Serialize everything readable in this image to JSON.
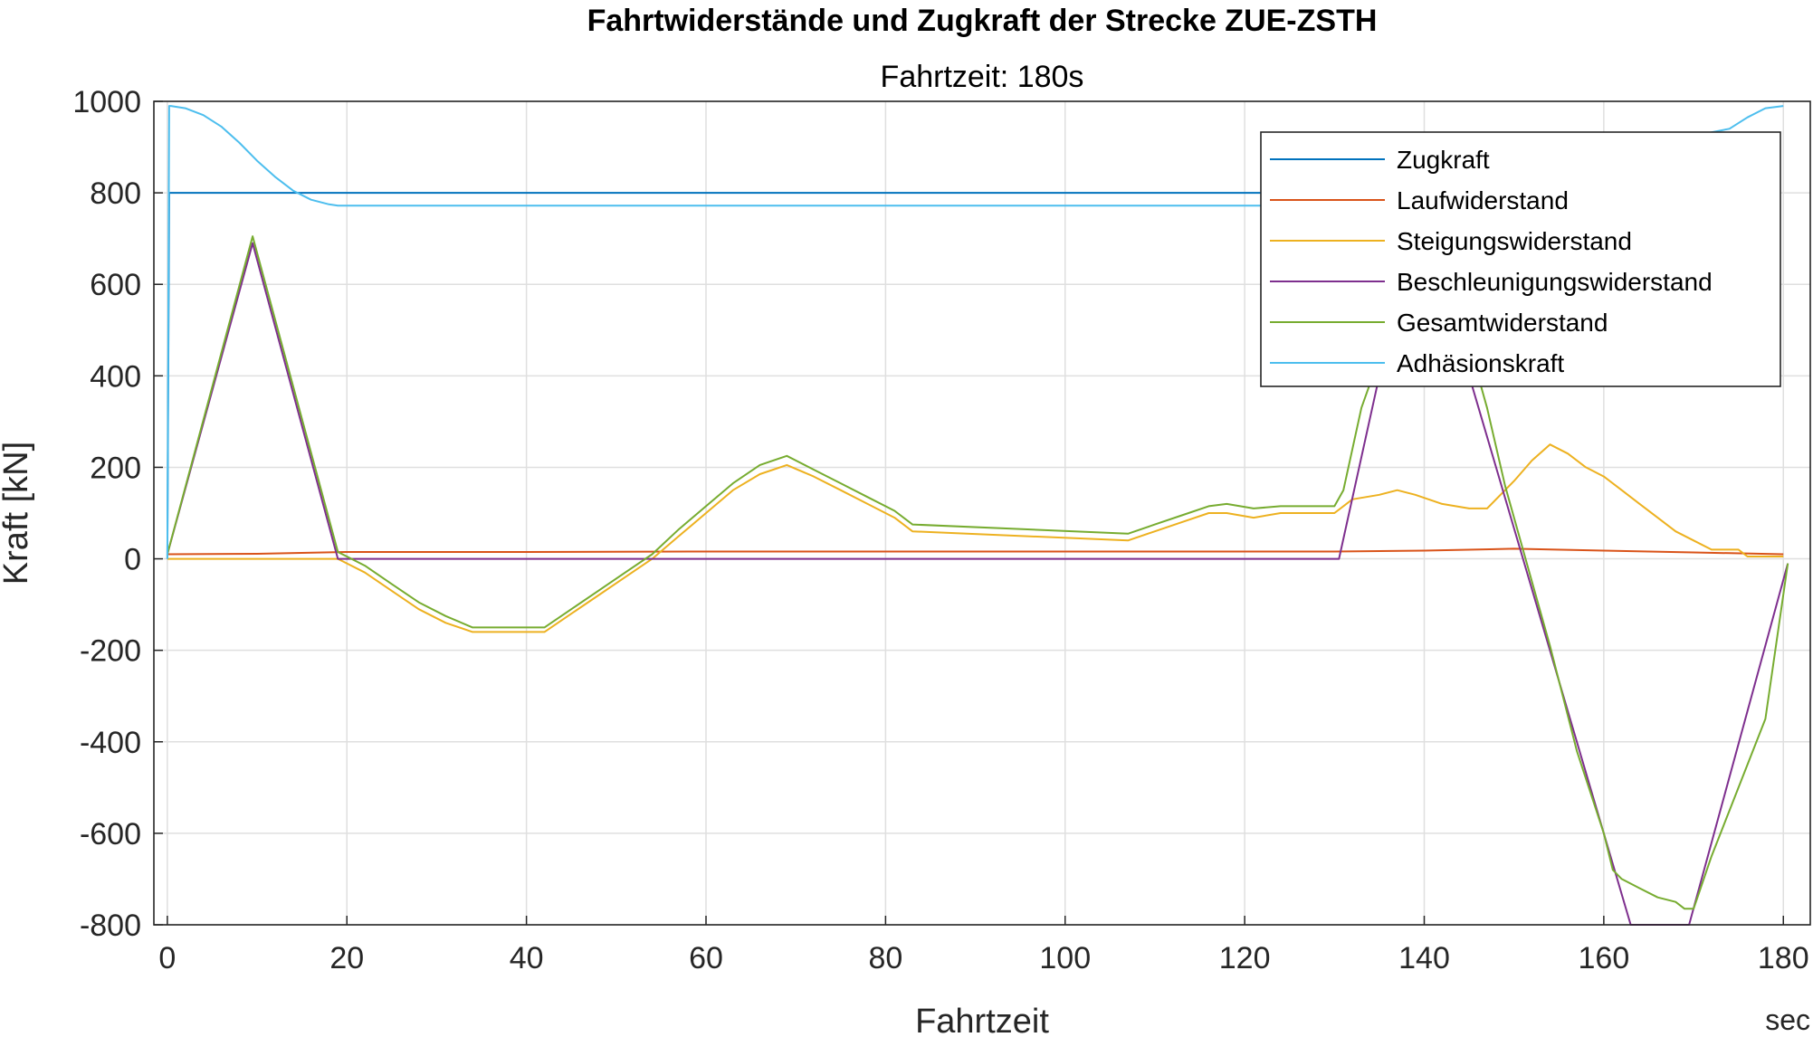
{
  "chart_data": {
    "type": "line",
    "title": "Fahrtwiderstände und Zugkraft der Strecke ZUE-ZSTH",
    "subtitle": "Fahrtzeit: 180s",
    "xlabel": "Fahrtzeit",
    "xunit": "sec",
    "ylabel": "Kraft [kN]",
    "xlim": [
      -1.5,
      183
    ],
    "ylim": [
      -800,
      1000
    ],
    "xticks": [
      "0",
      "20",
      "40",
      "60",
      "80",
      "100",
      "120",
      "140",
      "160",
      "180"
    ],
    "yticks": [
      "1000",
      "800",
      "600",
      "400",
      "200",
      "0",
      "-200",
      "-400",
      "-600",
      "-800"
    ],
    "grid": true,
    "legend_position": "top-right",
    "series": [
      {
        "name": "Zugkraft",
        "color": "#0072BD",
        "x": [
          0,
          0.2,
          0.4,
          130
        ],
        "y": [
          0,
          800,
          800,
          800
        ]
      },
      {
        "name": "Laufwiderstand",
        "color": "#D95319",
        "x": [
          0,
          10,
          20,
          40,
          60,
          80,
          100,
          120,
          130,
          140,
          150,
          160,
          170,
          180
        ],
        "y": [
          10,
          11,
          15,
          15,
          16,
          16,
          16,
          16,
          16,
          18,
          22,
          18,
          14,
          10
        ]
      },
      {
        "name": "Steigungswiderstand",
        "color": "#EDB120",
        "x": [
          0,
          19,
          22,
          25,
          28,
          31,
          34,
          42,
          45,
          48,
          51,
          54,
          57,
          60,
          63,
          66,
          69,
          72,
          75,
          78,
          81,
          83,
          107,
          110,
          113,
          116,
          118,
          121,
          124,
          130,
          132,
          135,
          137,
          139,
          142,
          145,
          147,
          150,
          152,
          154,
          156,
          158,
          160,
          162,
          164,
          166,
          168,
          170,
          172,
          175,
          176,
          180
        ],
        "y": [
          0,
          0,
          -30,
          -70,
          -110,
          -140,
          -160,
          -160,
          -120,
          -80,
          -40,
          0,
          50,
          100,
          150,
          185,
          205,
          180,
          150,
          120,
          90,
          60,
          40,
          60,
          80,
          100,
          100,
          90,
          100,
          100,
          130,
          140,
          150,
          140,
          120,
          110,
          110,
          170,
          215,
          250,
          230,
          200,
          180,
          150,
          120,
          90,
          60,
          40,
          20,
          20,
          5,
          5
        ]
      },
      {
        "name": "Beschleunigungswiderstand",
        "color": "#7E2F8E",
        "x": [
          0,
          9.5,
          19,
          130.5,
          135,
          137,
          141,
          145,
          163,
          169.5,
          180.5
        ],
        "y": [
          10,
          690,
          0,
          0,
          400,
          600,
          600,
          400,
          -800,
          -800,
          -10
        ]
      },
      {
        "name": "Gesamtwiderstand",
        "color": "#77AC30",
        "x": [
          0,
          9.5,
          19,
          22,
          25,
          28,
          31,
          34,
          42,
          45,
          48,
          51,
          54,
          57,
          60,
          63,
          66,
          69,
          72,
          75,
          78,
          81,
          83,
          107,
          110,
          113,
          116,
          118,
          121,
          124,
          130,
          131,
          133,
          135,
          137,
          139,
          143,
          145,
          147,
          149,
          152,
          154,
          157,
          160,
          161,
          162,
          164,
          166,
          168,
          169,
          170,
          172,
          175,
          178,
          180.5
        ],
        "y": [
          10,
          705,
          15,
          -15,
          -55,
          -95,
          -125,
          -150,
          -150,
          -110,
          -70,
          -30,
          10,
          65,
          115,
          165,
          205,
          225,
          195,
          165,
          135,
          105,
          75,
          55,
          75,
          95,
          115,
          120,
          110,
          115,
          115,
          150,
          330,
          440,
          550,
          600,
          600,
          470,
          330,
          160,
          -50,
          -190,
          -420,
          -600,
          -680,
          -700,
          -720,
          -740,
          -750,
          -765,
          -765,
          -650,
          -500,
          -350,
          -10
        ]
      },
      {
        "name": "Adhäsionskraft",
        "color": "#4DBEEE",
        "x": [
          0,
          0.2,
          0.4,
          2,
          4,
          6,
          8,
          10,
          12,
          14,
          16,
          18,
          19,
          130,
          174,
          176,
          178,
          180
        ],
        "y": [
          0,
          990,
          990,
          985,
          970,
          945,
          910,
          870,
          835,
          805,
          785,
          775,
          772,
          772,
          940,
          965,
          985,
          990
        ]
      }
    ]
  }
}
